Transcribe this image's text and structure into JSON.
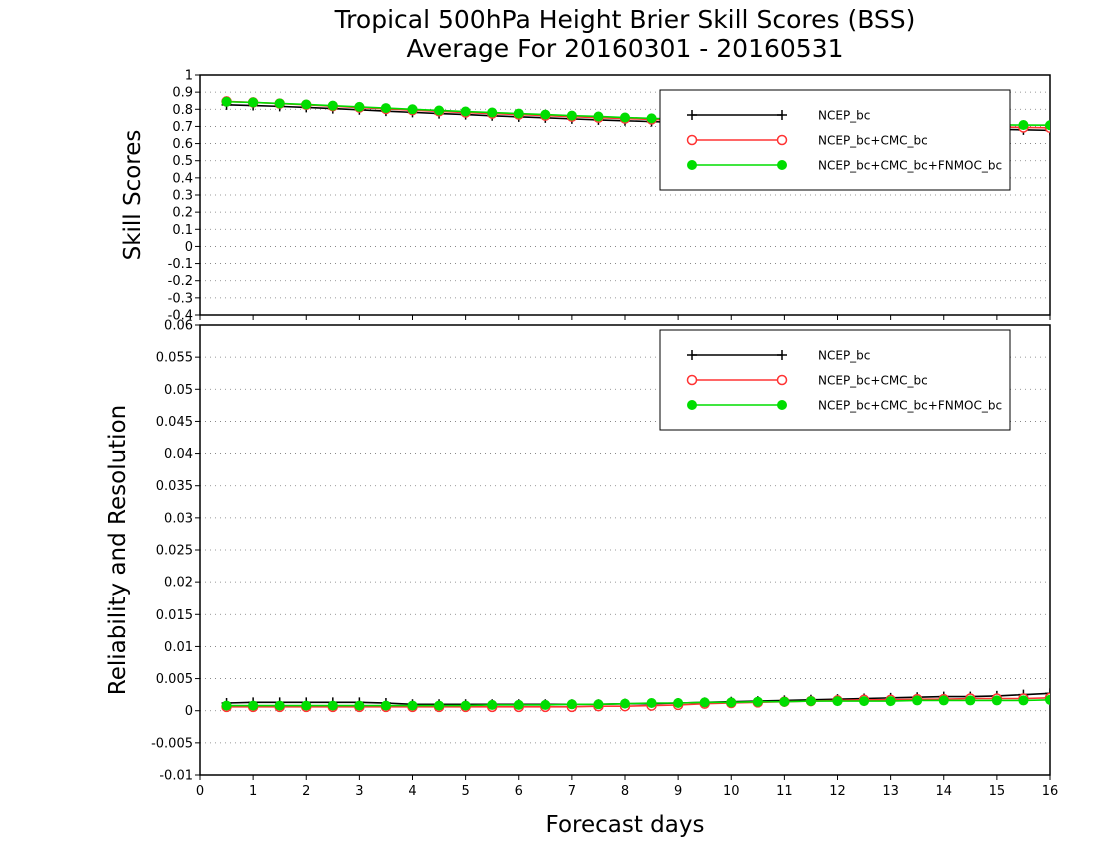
{
  "figure": {
    "title_line1": "Tropical 500hPa Height Brier Skill Scores (BSS)",
    "title_line2": "Average For 20160301 - 20160531",
    "xlabel": "Forecast days"
  },
  "legend_entries": [
    "NCEP_bc",
    "NCEP_bc+CMC_bc",
    "NCEP_bc+CMC_bc+FNMOC_bc"
  ],
  "chart_data": [
    {
      "type": "line",
      "panel": "top",
      "ylabel": "Skill Scores",
      "xlim": [
        0,
        16
      ],
      "ylim": [
        -0.4,
        1
      ],
      "x_ticks": [
        "0",
        "1",
        "2",
        "3",
        "4",
        "5",
        "6",
        "7",
        "8",
        "9",
        "10",
        "11",
        "12",
        "13",
        "14",
        "15",
        "16"
      ],
      "y_ticks": [
        "-0.4",
        "-0.3",
        "-0.2",
        "-0.1",
        "0",
        "0.1",
        "0.2",
        "0.3",
        "0.4",
        "0.5",
        "0.6",
        "0.7",
        "0.8",
        "0.9",
        "1"
      ],
      "grid": true,
      "legend_position": "top-right",
      "x": [
        0.5,
        1,
        1.5,
        2,
        2.5,
        3,
        3.5,
        4,
        4.5,
        5,
        5.5,
        6,
        6.5,
        7,
        7.5,
        8,
        8.5,
        9,
        9.5,
        10,
        10.5,
        11,
        11.5,
        12,
        12.5,
        13,
        13.5,
        14,
        14.5,
        15,
        15.5,
        16
      ],
      "series": [
        {
          "name": "NCEP_bc",
          "color": "#000000",
          "marker": "plus",
          "values": [
            0.826,
            0.822,
            0.817,
            0.811,
            0.804,
            0.797,
            0.789,
            0.782,
            0.775,
            0.769,
            0.762,
            0.756,
            0.75,
            0.744,
            0.738,
            0.733,
            0.728,
            0.723,
            0.719,
            0.715,
            0.711,
            0.707,
            0.703,
            0.7,
            0.697,
            0.694,
            0.691,
            0.688,
            0.685,
            0.683,
            0.68,
            0.677
          ]
        },
        {
          "name": "NCEP_bc+CMC_bc",
          "color": "#ff3333",
          "marker": "open-circle",
          "values": [
            0.846,
            0.84,
            0.833,
            0.826,
            0.818,
            0.81,
            0.802,
            0.795,
            0.788,
            0.781,
            0.775,
            0.769,
            0.763,
            0.757,
            0.751,
            0.746,
            0.741,
            0.736,
            0.732,
            0.728,
            0.724,
            0.72,
            0.717,
            0.714,
            0.711,
            0.708,
            0.705,
            0.702,
            0.699,
            0.697,
            0.694,
            0.692
          ]
        },
        {
          "name": "NCEP_bc+CMC_bc+FNMOC_bc",
          "color": "#00dd00",
          "marker": "filled-circle",
          "values": [
            0.844,
            0.84,
            0.834,
            0.828,
            0.821,
            0.814,
            0.807,
            0.8,
            0.793,
            0.787,
            0.781,
            0.775,
            0.769,
            0.763,
            0.758,
            0.752,
            0.747,
            0.743,
            0.739,
            0.735,
            0.731,
            0.728,
            0.725,
            0.722,
            0.719,
            0.716,
            0.714,
            0.712,
            0.71,
            0.709,
            0.708,
            0.707
          ]
        }
      ]
    },
    {
      "type": "line",
      "panel": "bottom",
      "ylabel": "Reliability and Resolution",
      "xlim": [
        0,
        16
      ],
      "ylim": [
        -0.01,
        0.06
      ],
      "x_ticks": [
        "0",
        "1",
        "2",
        "3",
        "4",
        "5",
        "6",
        "7",
        "8",
        "9",
        "10",
        "11",
        "12",
        "13",
        "14",
        "15",
        "16"
      ],
      "y_ticks": [
        "-0.01",
        "-0.005",
        "0",
        "0.005",
        "0.01",
        "0.015",
        "0.02",
        "0.025",
        "0.03",
        "0.035",
        "0.04",
        "0.045",
        "0.05",
        "0.055",
        "0.06"
      ],
      "grid": true,
      "legend_position": "top-right",
      "x": [
        0.5,
        1,
        1.5,
        2,
        2.5,
        3,
        3.5,
        4,
        4.5,
        5,
        5.5,
        6,
        6.5,
        7,
        7.5,
        8,
        8.5,
        9,
        9.5,
        10,
        10.5,
        11,
        11.5,
        12,
        12.5,
        13,
        13.5,
        14,
        14.5,
        15,
        15.5,
        16
      ],
      "series": [
        {
          "name": "NCEP_bc",
          "color": "#000000",
          "marker": "plus",
          "values": [
            0.0012,
            0.0013,
            0.0013,
            0.0013,
            0.0013,
            0.0013,
            0.0012,
            0.001,
            0.001,
            0.001,
            0.001,
            0.001,
            0.001,
            0.001,
            0.001,
            0.0011,
            0.0011,
            0.0012,
            0.0013,
            0.0014,
            0.0015,
            0.0016,
            0.0017,
            0.0018,
            0.0019,
            0.002,
            0.0021,
            0.0022,
            0.0022,
            0.0023,
            0.0025,
            0.0027
          ]
        },
        {
          "name": "NCEP_bc+CMC_bc",
          "color": "#ff3333",
          "marker": "open-circle",
          "values": [
            0.0006,
            0.0006,
            0.0006,
            0.0006,
            0.0006,
            0.0006,
            0.0006,
            0.0006,
            0.0006,
            0.0006,
            0.0006,
            0.0006,
            0.0006,
            0.0006,
            0.0007,
            0.0007,
            0.0008,
            0.0009,
            0.0011,
            0.0012,
            0.0013,
            0.0014,
            0.0015,
            0.0016,
            0.0017,
            0.0017,
            0.0018,
            0.0018,
            0.0019,
            0.0019,
            0.0019,
            0.002
          ]
        },
        {
          "name": "NCEP_bc+CMC_bc+FNMOC_bc",
          "color": "#00dd00",
          "marker": "filled-circle",
          "values": [
            0.0008,
            0.0008,
            0.0008,
            0.0008,
            0.0008,
            0.0008,
            0.0008,
            0.0008,
            0.0008,
            0.0008,
            0.0009,
            0.0009,
            0.0009,
            0.001,
            0.001,
            0.0011,
            0.0012,
            0.0012,
            0.0013,
            0.0013,
            0.0014,
            0.0014,
            0.0015,
            0.0015,
            0.0015,
            0.0015,
            0.0016,
            0.0016,
            0.0016,
            0.0016,
            0.0016,
            0.0017
          ]
        }
      ]
    }
  ]
}
